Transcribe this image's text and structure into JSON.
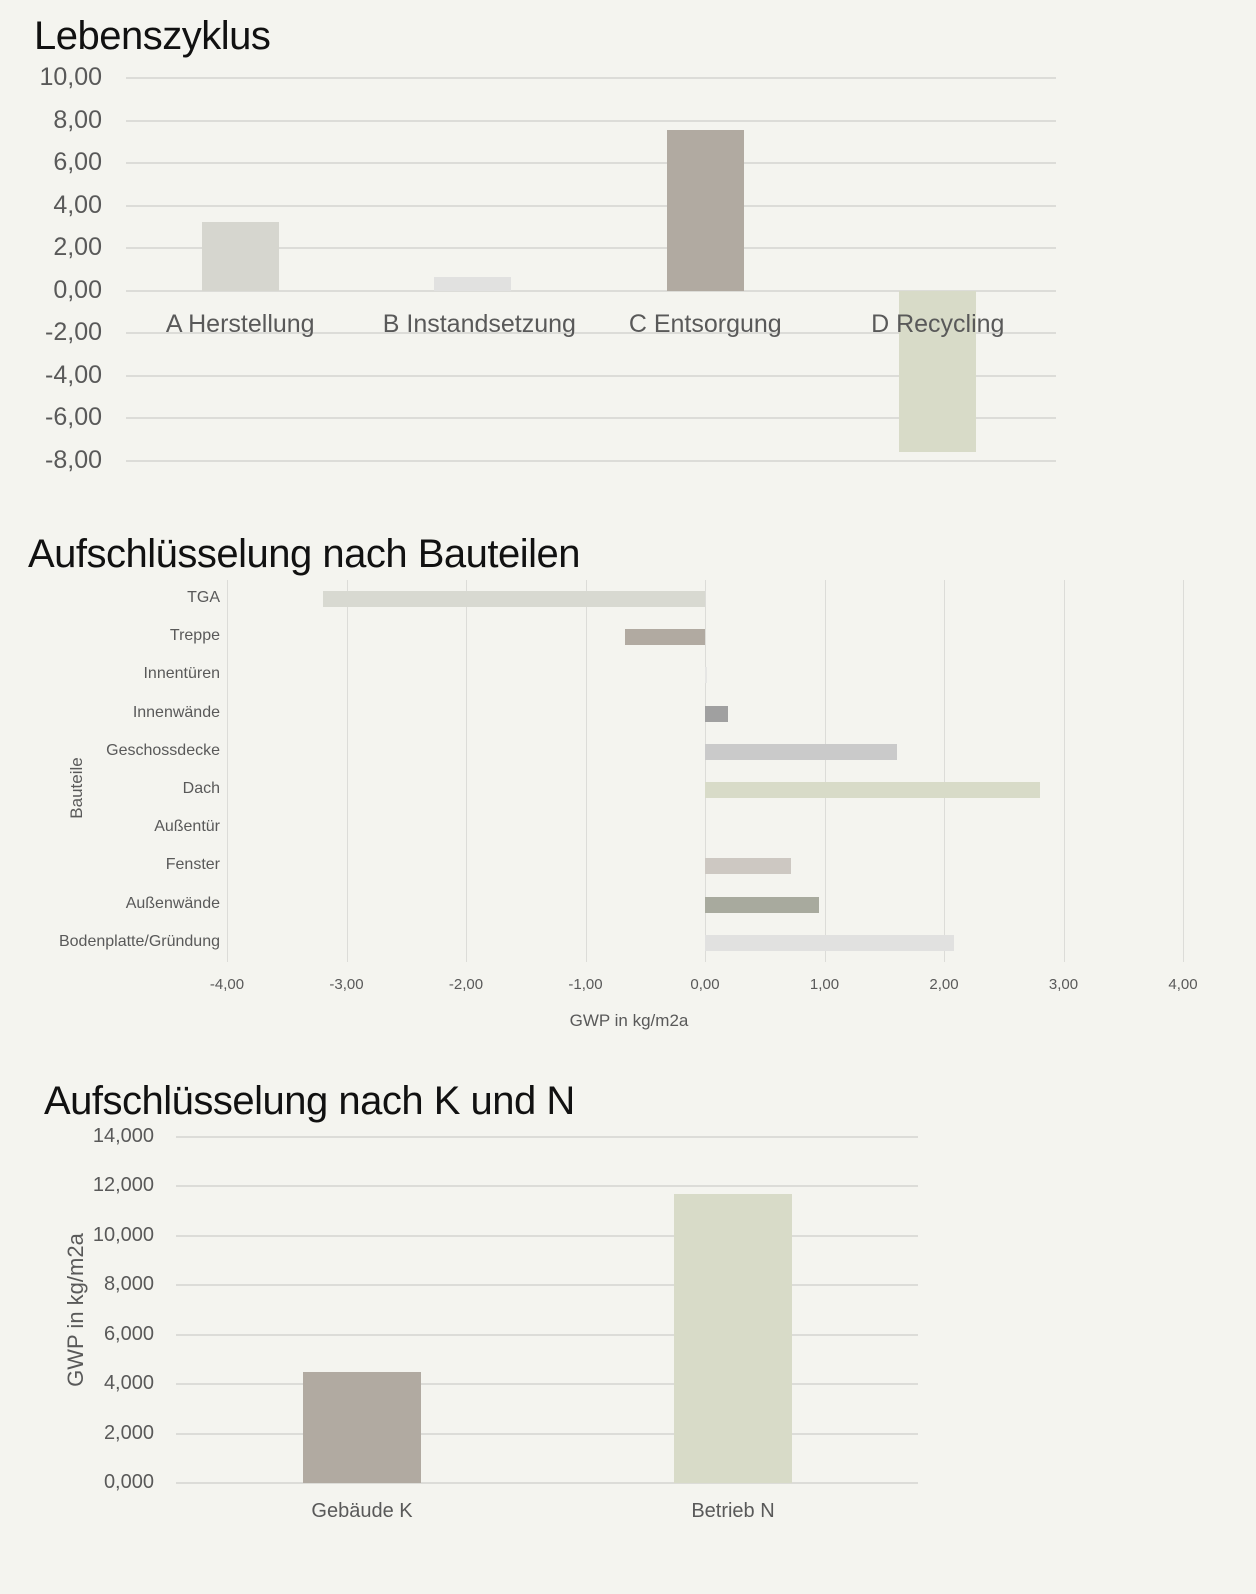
{
  "chart_data": [
    {
      "type": "bar",
      "title": "Lebenszyklus",
      "categories": [
        "A Herstellung",
        "B Instandsetzung",
        "C Entsorgung",
        "D Recycling"
      ],
      "values": [
        3.24,
        0.66,
        7.56,
        -7.6
      ],
      "colors": [
        "#d6d6cf",
        "#e1e1e0",
        "#b1aaa1",
        "#d8dbc8"
      ],
      "xlabel": "",
      "ylabel": "",
      "ylim": [
        -8,
        10
      ],
      "yticks": [
        "10,00",
        "8,00",
        "6,00",
        "4,00",
        "2,00",
        "0,00",
        "-2,00",
        "-4,00",
        "-6,00",
        "-8,00"
      ],
      "grid": true
    },
    {
      "type": "bar",
      "orientation": "horizontal",
      "title": "Aufschlüsselung nach Bauteilen",
      "categories": [
        "TGA",
        "Treppe",
        "Innentüren",
        "Innenwände",
        "Geschossdecke",
        "Dach",
        "Außentür",
        "Fenster",
        "Außenwände",
        "Bodenplatte/Gründung"
      ],
      "values": [
        -3.2,
        -0.67,
        0.02,
        0.19,
        1.61,
        2.8,
        0,
        0.72,
        0.95,
        2.08
      ],
      "colors": [
        "#d8d9d1",
        "#b1aaa1",
        "#e6e6e4",
        "#a0a0a0",
        "#cacaca",
        "#d8dbc8",
        "#d8dbc8",
        "#cdc8c2",
        "#a8aa9e",
        "#e1e1e0"
      ],
      "xlabel": "GWP in kg/m2a",
      "ylabel": "Bauteile",
      "xlim": [
        -4,
        4
      ],
      "xticks": [
        "-4,00",
        "-3,00",
        "-2,00",
        "-1,00",
        "0,00",
        "1,00",
        "2,00",
        "3,00",
        "4,00"
      ],
      "grid": true
    },
    {
      "type": "bar",
      "title": "Aufschlüsselung nach K und N",
      "categories": [
        "Gebäude K",
        "Betrieb  N"
      ],
      "values": [
        4.49,
        11.7
      ],
      "colors": [
        "#b1aaa1",
        "#d8dbc8"
      ],
      "xlabel": "",
      "ylabel": "GWP in kg/m2a",
      "ylim": [
        0,
        14
      ],
      "yticks": [
        "14,000",
        "12,000",
        "10,000",
        "8,000",
        "6,000",
        "4,000",
        "2,000",
        "0,000"
      ],
      "grid": true
    }
  ]
}
